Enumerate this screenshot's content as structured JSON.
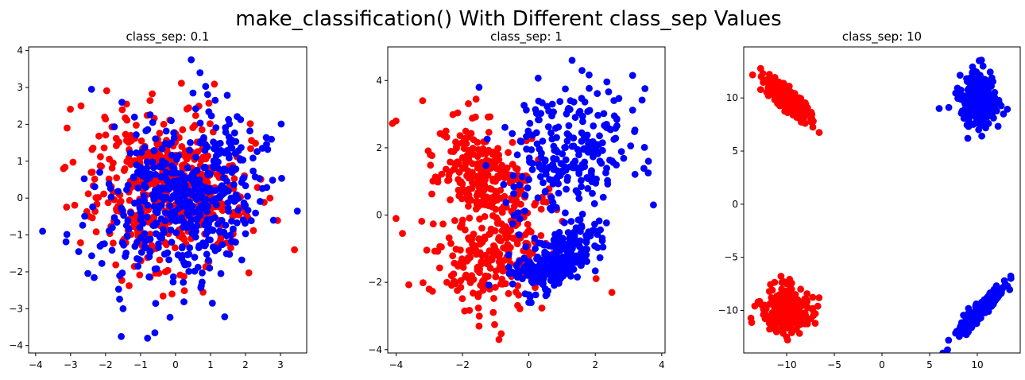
{
  "figure": {
    "suptitle": "make_classification() With Different class_sep Values"
  },
  "colors": {
    "class_0": "#ff0000",
    "class_1": "#0000ff",
    "axes": "#000000",
    "background": "#ffffff"
  },
  "chart_data": [
    {
      "type": "scatter",
      "title": "class_sep: 0.1",
      "xlabel": "",
      "ylabel": "",
      "xlim": [
        -4.2,
        3.75
      ],
      "ylim": [
        -4.2,
        4.1
      ],
      "xticks": [
        -4,
        -3,
        -2,
        -1,
        0,
        1,
        2,
        3
      ],
      "yticks": [
        -4,
        -3,
        -2,
        -1,
        0,
        1,
        2,
        3,
        4
      ],
      "grid": false,
      "series": [
        {
          "color": "#ff0000",
          "clusters": [
            {
              "cx": -0.3,
              "cy": 0.2,
              "sx": 1.1,
              "sy": 1.0,
              "rho": -0.1,
              "n": 500
            }
          ],
          "points": [
            [
              -3.1,
              1.9
            ],
            [
              -2.7,
              2.5
            ],
            [
              -1.4,
              2.55
            ],
            [
              3.4,
              -1.4
            ],
            [
              -0.1,
              -2.6
            ],
            [
              -3.2,
              0.8
            ],
            [
              2.7,
              0.0
            ]
          ]
        },
        {
          "color": "#0000ff",
          "clusters": [
            {
              "cx": 0.3,
              "cy": -0.1,
              "sx": 1.1,
              "sy": 1.1,
              "rho": 0.2,
              "n": 500
            }
          ],
          "points": [
            [
              0.45,
              3.75
            ],
            [
              0.7,
              3.4
            ],
            [
              -2.4,
              2.95
            ],
            [
              -3.8,
              -0.9
            ],
            [
              -0.8,
              -3.8
            ],
            [
              -1.5,
              -3.0
            ],
            [
              2.8,
              -0.6
            ],
            [
              0.5,
              2.85
            ]
          ]
        }
      ]
    },
    {
      "type": "scatter",
      "title": "class_sep: 1",
      "xlabel": "",
      "ylabel": "",
      "xlim": [
        -4.25,
        4.1
      ],
      "ylim": [
        -4.1,
        5.0
      ],
      "xticks": [
        -4,
        -2,
        0,
        2,
        4
      ],
      "yticks": [
        -4,
        -2,
        0,
        2,
        4
      ],
      "grid": false,
      "series": [
        {
          "color": "#ff0000",
          "clusters": [
            {
              "cx": -1.4,
              "cy": 1.2,
              "sx": 0.75,
              "sy": 0.75,
              "rho": -0.3,
              "n": 250
            },
            {
              "cx": -1.1,
              "cy": -1.1,
              "sx": 0.9,
              "sy": 0.85,
              "rho": 0.1,
              "n": 250
            }
          ],
          "points": [
            [
              -3.2,
              3.4
            ],
            [
              -4.0,
              2.8
            ],
            [
              -4.0,
              -0.1
            ],
            [
              -0.9,
              -3.7
            ],
            [
              2.5,
              -2.3
            ],
            [
              -1.5,
              -3.3
            ],
            [
              -3.0,
              -2.2
            ]
          ]
        },
        {
          "color": "#0000ff",
          "clusters": [
            {
              "cx": 1.3,
              "cy": 1.8,
              "sx": 0.95,
              "sy": 1.05,
              "rho": 0.2,
              "n": 250
            },
            {
              "cx": 0.9,
              "cy": -1.3,
              "sx": 0.65,
              "sy": 0.45,
              "rho": 0.5,
              "n": 250
            }
          ],
          "points": [
            [
              1.3,
              4.6
            ],
            [
              1.6,
              4.3
            ],
            [
              -1.5,
              3.8
            ],
            [
              3.6,
              1.6
            ],
            [
              3.75,
              0.3
            ],
            [
              0.0,
              -2.6
            ]
          ]
        }
      ]
    },
    {
      "type": "scatter",
      "title": "class_sep: 10",
      "xlabel": "",
      "ylabel": "",
      "xlim": [
        -14.5,
        14.5
      ],
      "ylim": [
        -14.0,
        14.8
      ],
      "xticks": [
        -10,
        -5,
        0,
        5,
        10
      ],
      "yticks": [
        -10,
        -5,
        0,
        5,
        10
      ],
      "grid": false,
      "series": [
        {
          "color": "#ff0000",
          "clusters": [
            {
              "cx": -10.0,
              "cy": 10.0,
              "sx": 1.3,
              "sy": 1.05,
              "rho": -0.85,
              "n": 250
            },
            {
              "cx": -10.0,
              "cy": -10.0,
              "sx": 1.2,
              "sy": 1.0,
              "rho": 0.0,
              "n": 250
            }
          ],
          "points": [
            [
              -12.5,
              12.3
            ],
            [
              -7.5,
              8.3
            ],
            [
              -10.0,
              -7.5
            ],
            [
              -7.0,
              -11.2
            ],
            [
              -13.0,
              -9.2
            ],
            [
              -10.0,
              -12.5
            ]
          ]
        },
        {
          "color": "#0000ff",
          "clusters": [
            {
              "cx": 10.2,
              "cy": 10.0,
              "sx": 0.95,
              "sy": 1.3,
              "rho": 0.0,
              "n": 250
            },
            {
              "cx": 10.3,
              "cy": -10.0,
              "sx": 1.15,
              "sy": 1.1,
              "rho": 0.93,
              "n": 250
            }
          ],
          "points": [
            [
              10.2,
              13.5
            ],
            [
              9.0,
              6.2
            ],
            [
              6.0,
              9.0
            ],
            [
              12.3,
              9.5
            ],
            [
              12.0,
              -7.8
            ],
            [
              8.3,
              -12.2
            ]
          ]
        }
      ]
    }
  ]
}
